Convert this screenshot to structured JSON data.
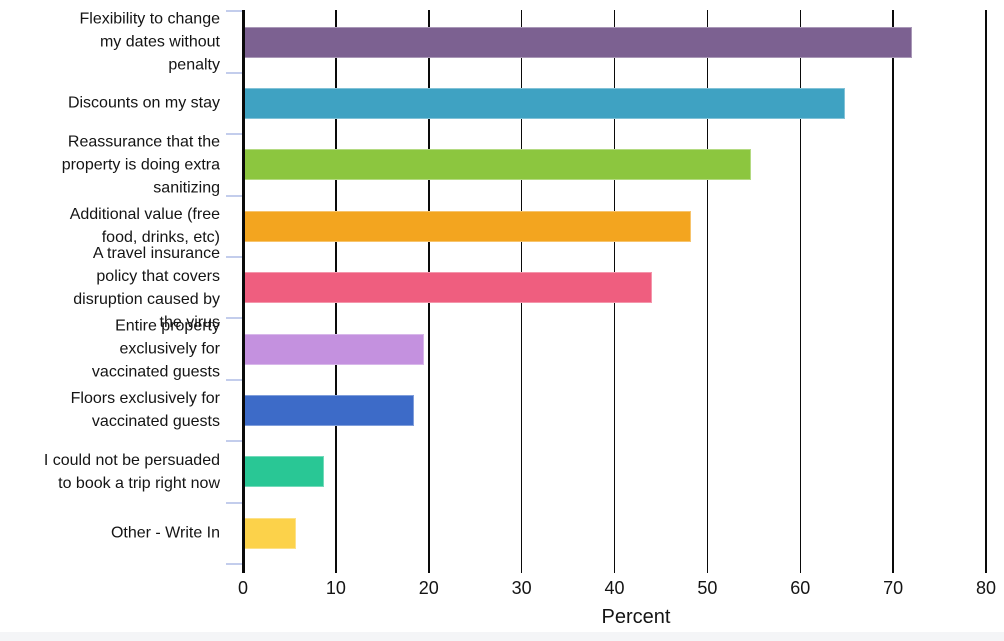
{
  "chart_data": {
    "type": "bar",
    "orientation": "horizontal",
    "title": "",
    "xlabel": "Percent",
    "xlim": [
      0,
      80
    ],
    "xticks": [
      0,
      10,
      20,
      30,
      40,
      50,
      60,
      70,
      80
    ],
    "grid": "vertical-gridlines-on",
    "legend": "none",
    "categories": [
      "Flexibility to change my dates without penalty",
      "Discounts on my stay",
      "Reassurance that the property is doing extra sanitizing",
      "Additional value (free food, drinks, etc)",
      "A travel insurance policy that covers disruption caused by the virus",
      "Entire property exclusively for vaccinated guests",
      "Floors exclusively for vaccinated guests",
      "I could not be persuaded to book a trip right now",
      "Other - Write In"
    ],
    "categories_wrapped": [
      [
        "Flexibility to change",
        "my dates without",
        "penalty"
      ],
      [
        "Discounts on my stay"
      ],
      [
        "Reassurance that the",
        "property is doing extra",
        "sanitizing"
      ],
      [
        "Additional value (free",
        "food, drinks, etc)"
      ],
      [
        "A travel insurance",
        "policy that covers",
        "disruption caused by",
        "the virus"
      ],
      [
        "Entire property",
        "exclusively for",
        "vaccinated guests"
      ],
      [
        "Floors exclusively for",
        "vaccinated guests"
      ],
      [
        "I could not be persuaded",
        "to book a trip right now"
      ],
      [
        "Other - Write In"
      ]
    ],
    "values": [
      71.9,
      64.7,
      54.6,
      48.1,
      43.9,
      19.4,
      18.3,
      8.6,
      5.6
    ],
    "bar_colors": [
      "#7C6191",
      "#3FA2C2",
      "#8CC63F",
      "#F3A51F",
      "#EF5E7F",
      "#C491DF",
      "#3D6BC8",
      "#29C795",
      "#FCD24A"
    ],
    "axis_color": "#0a0a0a",
    "ytick_color": "#c3cdec"
  }
}
